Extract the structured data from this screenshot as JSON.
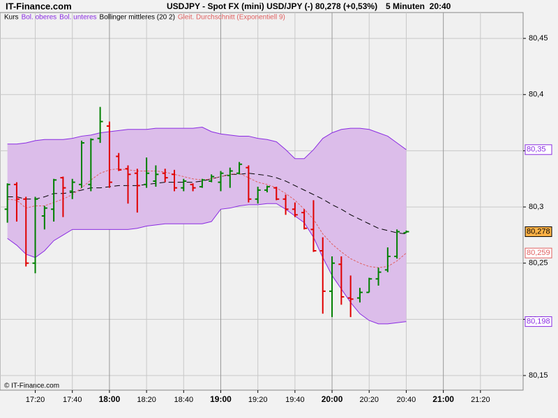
{
  "chart_data": {
    "type": "ohlc",
    "site": "IT-Finance.com",
    "title": "USDJPY - Spot FX (mini) USD/JPY (-)",
    "price_change": "80,278 (+0,53%)",
    "interval": "5 Minuten  20:40",
    "footer": "© IT-Finance.com",
    "x": [
      "17:05",
      "17:10",
      "17:15",
      "17:20",
      "17:25",
      "17:30",
      "17:35",
      "17:40",
      "17:45",
      "17:50",
      "17:55",
      "18:00",
      "18:05",
      "18:10",
      "18:15",
      "18:20",
      "18:25",
      "18:30",
      "18:35",
      "18:40",
      "18:45",
      "18:50",
      "18:55",
      "19:00",
      "19:05",
      "19:10",
      "19:15",
      "19:20",
      "19:25",
      "19:30",
      "19:35",
      "19:40",
      "19:45",
      "19:50",
      "19:55",
      "20:00",
      "20:05",
      "20:10",
      "20:15",
      "20:20",
      "20:25",
      "20:30",
      "20:35",
      "20:40"
    ],
    "xlim": [
      "17:01",
      "21:43"
    ],
    "xticks": [
      "17:20",
      "17:40",
      "18:00",
      "18:20",
      "18:40",
      "19:00",
      "19:20",
      "19:40",
      "20:00",
      "20:20",
      "20:40",
      "21:00",
      "21:20"
    ],
    "ylim": [
      80.137,
      80.473
    ],
    "yticks": [
      {
        "value": 80.15,
        "label": "80,15"
      },
      {
        "value": 80.2,
        "label": "80,2"
      },
      {
        "value": 80.25,
        "label": "80,25"
      },
      {
        "value": 80.3,
        "label": "80,3"
      },
      {
        "value": 80.35,
        "label": "80,35"
      },
      {
        "value": 80.4,
        "label": "80,4"
      },
      {
        "value": 80.45,
        "label": "80,45"
      }
    ],
    "grid": true,
    "ohlc": {
      "name": "Kurs",
      "up_color": "#008000",
      "down_color": "#e00000",
      "label_fill": "#ffb347",
      "last_label": "80,278",
      "open": [
        80.298,
        80.32,
        80.307,
        80.25,
        80.292,
        80.298,
        80.326,
        80.314,
        80.32,
        80.32,
        80.361,
        80.372,
        80.345,
        80.334,
        80.33,
        80.32,
        80.323,
        80.33,
        80.329,
        80.317,
        80.32,
        80.318,
        80.323,
        80.322,
        80.328,
        80.33,
        80.335,
        80.307,
        80.315,
        80.317,
        80.307,
        80.298,
        80.295,
        80.28,
        80.261,
        80.225,
        80.249,
        80.219,
        80.219,
        80.224,
        80.236,
        80.244,
        80.256,
        80.277
      ],
      "high": [
        80.321,
        80.322,
        80.309,
        80.309,
        80.301,
        80.325,
        80.327,
        80.325,
        80.359,
        80.361,
        80.389,
        80.376,
        80.348,
        80.337,
        80.334,
        80.344,
        80.337,
        80.334,
        80.333,
        80.325,
        80.321,
        80.325,
        80.329,
        80.332,
        80.335,
        80.34,
        80.337,
        80.318,
        80.319,
        80.318,
        80.311,
        80.304,
        80.298,
        80.306,
        80.273,
        80.256,
        80.256,
        80.239,
        80.228,
        80.237,
        80.246,
        80.264,
        80.28,
        80.279
      ],
      "low": [
        80.286,
        80.287,
        80.247,
        80.241,
        80.28,
        80.287,
        80.291,
        80.307,
        80.317,
        80.314,
        80.357,
        80.317,
        80.332,
        80.303,
        80.295,
        80.317,
        80.318,
        80.322,
        80.314,
        80.314,
        80.314,
        80.317,
        80.322,
        80.314,
        80.317,
        80.329,
        80.304,
        80.303,
        80.313,
        80.306,
        80.293,
        80.291,
        80.28,
        80.26,
        80.205,
        80.202,
        80.213,
        80.202,
        80.215,
        80.224,
        80.23,
        80.242,
        80.254,
        80.277
      ],
      "close": [
        80.32,
        80.307,
        80.25,
        80.307,
        80.299,
        80.324,
        80.317,
        80.322,
        80.357,
        80.36,
        80.376,
        80.322,
        80.333,
        80.329,
        80.319,
        80.33,
        80.329,
        80.326,
        80.317,
        80.323,
        80.317,
        80.324,
        80.327,
        80.33,
        80.332,
        80.338,
        80.307,
        80.315,
        80.318,
        80.307,
        80.298,
        80.293,
        80.281,
        80.261,
        80.225,
        80.25,
        80.22,
        80.218,
        80.224,
        80.236,
        80.242,
        80.256,
        80.278,
        80.278
      ]
    },
    "band_fill": "#dcbdea",
    "series": [
      {
        "name": "Bol. oberes",
        "color": "#8a2be2",
        "last_label": "80,35",
        "values": [
          80.356,
          80.356,
          80.357,
          80.359,
          80.36,
          80.36,
          80.36,
          80.361,
          80.363,
          80.364,
          80.366,
          80.367,
          80.368,
          80.369,
          80.369,
          80.369,
          80.37,
          80.37,
          80.37,
          80.37,
          80.37,
          80.371,
          80.367,
          80.365,
          80.364,
          80.363,
          80.363,
          80.361,
          80.36,
          80.358,
          80.351,
          80.343,
          80.343,
          80.351,
          80.361,
          80.366,
          80.369,
          80.37,
          80.37,
          80.369,
          80.366,
          80.363,
          80.357,
          80.351
        ]
      },
      {
        "name": "Bol. unteres",
        "color": "#8a2be2",
        "last_label": "80,198",
        "values": [
          80.272,
          80.266,
          80.258,
          80.255,
          80.261,
          80.27,
          80.275,
          80.28,
          80.28,
          80.28,
          80.28,
          80.28,
          80.28,
          80.28,
          80.281,
          80.283,
          80.284,
          80.285,
          80.285,
          80.285,
          80.285,
          80.285,
          80.287,
          80.298,
          80.299,
          80.301,
          80.302,
          80.302,
          80.303,
          80.303,
          80.298,
          80.292,
          80.286,
          80.273,
          80.255,
          80.239,
          80.227,
          80.215,
          80.205,
          80.199,
          80.196,
          80.196,
          80.197,
          80.198
        ]
      },
      {
        "name": "Bollinger mittleres (20 2)",
        "color": "#000000",
        "dash": "8 5",
        "values": [
          80.309,
          80.309,
          80.307,
          80.307,
          80.309,
          80.312,
          80.312,
          80.313,
          80.315,
          80.317,
          80.317,
          80.318,
          80.319,
          80.319,
          80.319,
          80.32,
          80.321,
          80.322,
          80.322,
          80.322,
          80.322,
          80.323,
          80.325,
          80.327,
          80.329,
          80.329,
          80.33,
          80.329,
          80.328,
          80.326,
          80.323,
          80.319,
          80.315,
          80.311,
          80.307,
          80.302,
          80.298,
          80.293,
          80.289,
          80.285,
          80.281,
          80.279,
          80.277,
          80.276
        ]
      },
      {
        "name": "Gleit. Durchschnitt (Exponentiell 9)",
        "color": "#e06060",
        "dash": "3 2",
        "last_label": "80,259",
        "values": [
          80.307,
          80.306,
          80.299,
          80.301,
          80.301,
          80.304,
          80.307,
          80.311,
          80.317,
          80.324,
          80.33,
          80.333,
          80.334,
          80.333,
          80.332,
          80.332,
          80.332,
          80.331,
          80.329,
          80.327,
          80.325,
          80.324,
          80.325,
          80.327,
          80.329,
          80.33,
          80.326,
          80.322,
          80.32,
          80.317,
          80.312,
          80.306,
          80.298,
          80.289,
          80.276,
          80.267,
          80.26,
          80.254,
          80.25,
          80.247,
          80.246,
          80.247,
          80.252,
          80.259
        ]
      }
    ]
  }
}
